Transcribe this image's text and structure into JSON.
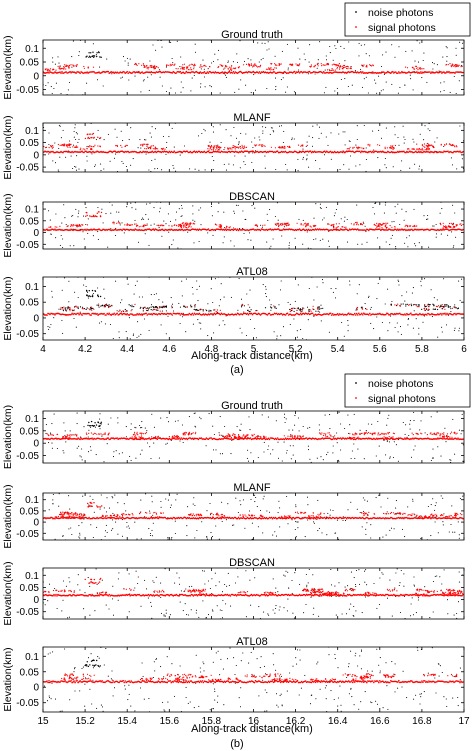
{
  "figure": {
    "legend_noise": "noise photons",
    "legend_signal": "signal photons",
    "colors": {
      "noise": "#000000",
      "signal": "#ff0000",
      "axis": "#000000"
    }
  },
  "chart_data": [
    {
      "type": "scatter",
      "group": "a",
      "caption": "(a)",
      "xlabel": "Along-track distance(km)",
      "ylabel": "Elevation(km)",
      "xlim": [
        4,
        6
      ],
      "ylim": [
        -0.07,
        0.13
      ],
      "xticks": [
        4,
        4.2,
        4.4,
        4.6,
        4.8,
        5,
        5.2,
        5.4,
        5.6,
        5.8,
        6
      ],
      "xticklabels": [
        "4",
        "4.2",
        "4.4",
        "4.6",
        "4.8",
        "5",
        "5.2",
        "5.4",
        "5.6",
        "5.8",
        "6"
      ],
      "yticks": [
        0.1,
        0.05,
        0,
        -0.05
      ],
      "yticklabels": [
        "0.1",
        "0.05",
        "0",
        "-0.05"
      ],
      "ground_level": 0.012,
      "canopy_level": 0.03,
      "legend": "top-right",
      "panels": [
        {
          "title": "Ground truth",
          "black_canopy": false,
          "seed": 11
        },
        {
          "title": "MLANF",
          "black_canopy": false,
          "seed": 23
        },
        {
          "title": "DBSCAN",
          "black_canopy": false,
          "seed": 37
        },
        {
          "title": "ATL08",
          "black_canopy": true,
          "seed": 41
        }
      ]
    },
    {
      "type": "scatter",
      "group": "b",
      "caption": "(b)",
      "xlabel": "Along-track distance(km)",
      "ylabel": "Elevation(km)",
      "xlim": [
        15,
        17
      ],
      "ylim": [
        -0.08,
        0.13
      ],
      "xticks": [
        15,
        15.2,
        15.4,
        15.6,
        15.8,
        16,
        16.2,
        16.4,
        16.6,
        16.8,
        17
      ],
      "xticklabels": [
        "15",
        "15.2",
        "15.4",
        "15.6",
        "15.8",
        "16",
        "16.2",
        "16.4",
        "16.6",
        "16.8",
        "17"
      ],
      "yticks": [
        0.1,
        0.05,
        0,
        -0.05
      ],
      "yticklabels": [
        "0.1",
        "0.05",
        "0",
        "-0.05"
      ],
      "ground_level": 0.018,
      "canopy_level": 0.03,
      "legend": "top-right",
      "panels": [
        {
          "title": "Ground truth",
          "black_canopy": false,
          "seed": 53
        },
        {
          "title": "MLANF",
          "black_canopy": false,
          "seed": 67
        },
        {
          "title": "DBSCAN",
          "black_canopy": false,
          "seed": 71
        },
        {
          "title": "ATL08",
          "black_canopy": false,
          "seed": 83
        }
      ]
    }
  ]
}
